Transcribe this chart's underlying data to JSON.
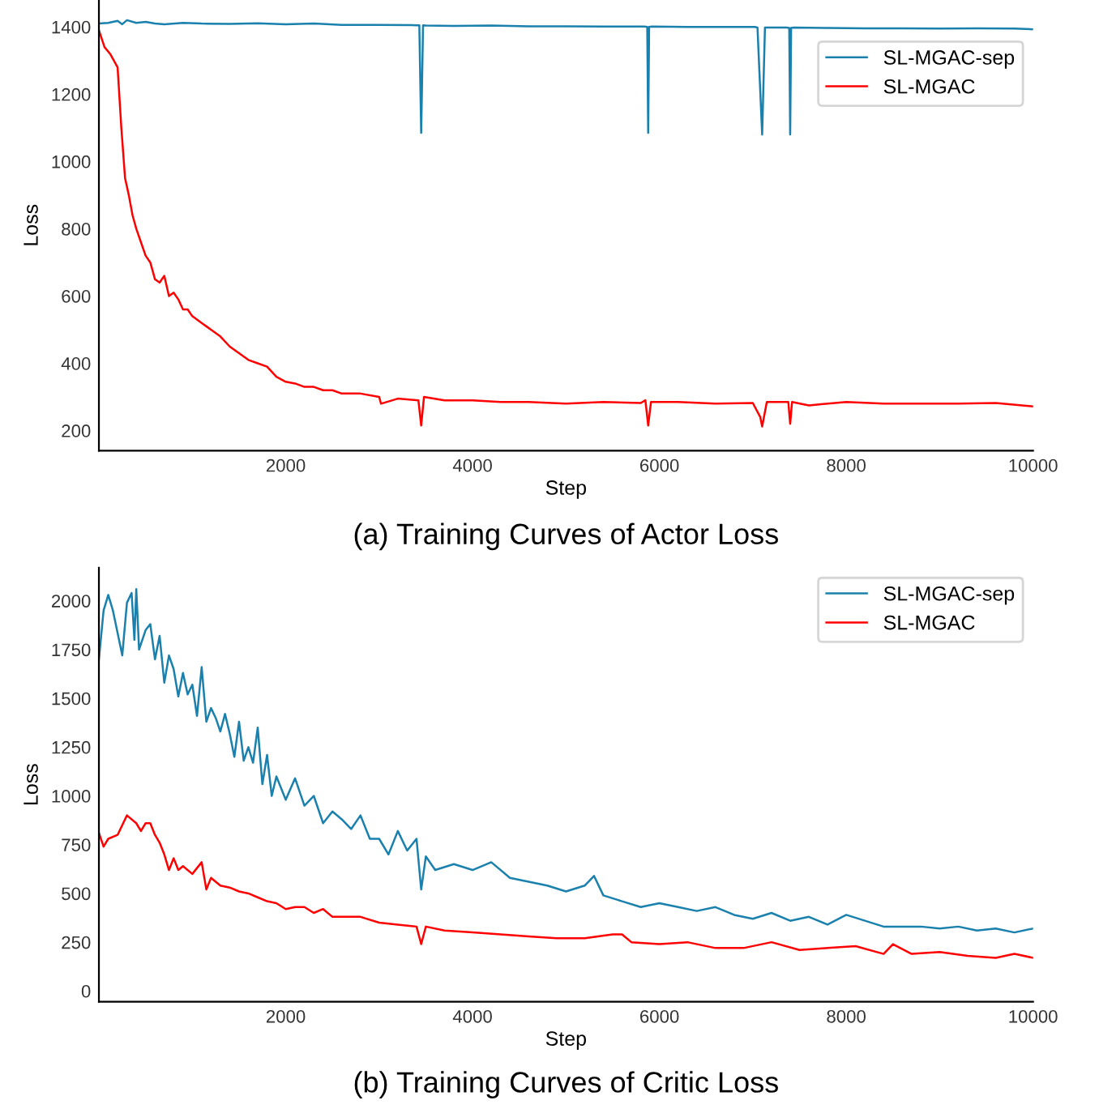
{
  "chart_data": [
    {
      "type": "line",
      "title": "(a) Training Curves of Actor Loss",
      "xlabel": "Step",
      "ylabel": "Loss",
      "xlim": [
        0,
        10000
      ],
      "ylim": [
        140,
        1480
      ],
      "xticks": [
        2000,
        4000,
        6000,
        8000,
        10000
      ],
      "yticks": [
        200,
        400,
        600,
        800,
        1000,
        1200,
        1400
      ],
      "grid": false,
      "legend": "top right",
      "series": [
        {
          "name": "SL-MGAC-sep",
          "color": "#1a80ad",
          "x": [
            0,
            100,
            200,
            250,
            300,
            400,
            500,
            600,
            700,
            900,
            1100,
            1400,
            1700,
            2000,
            2300,
            2600,
            3000,
            3400,
            3430,
            3450,
            3470,
            3500,
            3800,
            4200,
            4600,
            5000,
            5400,
            5840,
            5870,
            5880,
            5890,
            5920,
            6300,
            6700,
            7020,
            7050,
            7100,
            7130,
            7160,
            7360,
            7390,
            7400,
            7410,
            7440,
            7800,
            8200,
            8600,
            9000,
            9400,
            9800,
            10000
          ],
          "values": [
            1410,
            1412,
            1418,
            1408,
            1420,
            1412,
            1415,
            1410,
            1408,
            1412,
            1410,
            1409,
            1411,
            1408,
            1410,
            1406,
            1406,
            1405,
            1405,
            1085,
            1405,
            1404,
            1403,
            1404,
            1402,
            1402,
            1401,
            1401,
            1400,
            1085,
            1400,
            1401,
            1400,
            1400,
            1400,
            1398,
            1080,
            1398,
            1398,
            1398,
            1397,
            1080,
            1397,
            1398,
            1397,
            1396,
            1396,
            1395,
            1396,
            1395,
            1393
          ]
        },
        {
          "name": "SL-MGAC",
          "color": "#ff0000",
          "x": [
            0,
            60,
            120,
            200,
            240,
            280,
            320,
            360,
            400,
            450,
            500,
            550,
            600,
            650,
            700,
            750,
            800,
            850,
            900,
            950,
            1000,
            1100,
            1200,
            1300,
            1400,
            1500,
            1600,
            1700,
            1800,
            1900,
            2000,
            2100,
            2200,
            2300,
            2400,
            2500,
            2600,
            2800,
            3000,
            3020,
            3200,
            3420,
            3450,
            3480,
            3700,
            4000,
            4300,
            4600,
            5000,
            5400,
            5800,
            5850,
            5880,
            5910,
            6200,
            6600,
            7000,
            7080,
            7100,
            7150,
            7380,
            7400,
            7420,
            7600,
            8000,
            8400,
            8800,
            9200,
            9600,
            10000
          ],
          "values": [
            1390,
            1340,
            1320,
            1280,
            1100,
            950,
            900,
            840,
            800,
            760,
            720,
            700,
            650,
            640,
            660,
            600,
            610,
            590,
            560,
            560,
            540,
            520,
            500,
            480,
            450,
            430,
            410,
            400,
            390,
            360,
            345,
            340,
            330,
            330,
            320,
            320,
            310,
            310,
            300,
            280,
            295,
            290,
            215,
            300,
            290,
            290,
            285,
            285,
            280,
            285,
            282,
            290,
            215,
            285,
            285,
            280,
            282,
            240,
            212,
            285,
            285,
            220,
            285,
            275,
            285,
            280,
            280,
            280,
            282,
            272
          ]
        }
      ]
    },
    {
      "type": "line",
      "title": "(b) Training Curves of Critic Loss",
      "xlabel": "Step",
      "ylabel": "Loss",
      "xlim": [
        0,
        10000
      ],
      "ylim": [
        -55,
        2170
      ],
      "xticks": [
        2000,
        4000,
        6000,
        8000,
        10000
      ],
      "yticks": [
        0,
        250,
        500,
        750,
        1000,
        1250,
        1500,
        1750,
        2000
      ],
      "grid": false,
      "legend": "top right",
      "series": [
        {
          "name": "SL-MGAC-sep",
          "color": "#1a80ad",
          "x": [
            0,
            50,
            100,
            150,
            250,
            300,
            350,
            380,
            400,
            430,
            500,
            550,
            600,
            650,
            700,
            750,
            800,
            850,
            900,
            950,
            1000,
            1050,
            1100,
            1150,
            1200,
            1250,
            1300,
            1350,
            1400,
            1450,
            1500,
            1550,
            1600,
            1650,
            1700,
            1750,
            1800,
            1850,
            1900,
            2000,
            2100,
            2200,
            2300,
            2400,
            2500,
            2600,
            2700,
            2800,
            2900,
            3000,
            3100,
            3200,
            3300,
            3400,
            3450,
            3500,
            3600,
            3800,
            4000,
            4200,
            4400,
            4600,
            4800,
            5000,
            5200,
            5300,
            5400,
            5600,
            5800,
            6000,
            6200,
            6400,
            6600,
            6800,
            7000,
            7200,
            7400,
            7600,
            7800,
            8000,
            8200,
            8400,
            8600,
            8800,
            9000,
            9200,
            9400,
            9600,
            9800,
            10000
          ],
          "values": [
            1700,
            1950,
            2030,
            1950,
            1720,
            1990,
            2040,
            1800,
            2060,
            1750,
            1850,
            1880,
            1700,
            1820,
            1580,
            1720,
            1650,
            1510,
            1630,
            1520,
            1570,
            1410,
            1660,
            1380,
            1450,
            1400,
            1330,
            1420,
            1320,
            1200,
            1380,
            1180,
            1250,
            1170,
            1350,
            1060,
            1210,
            1000,
            1100,
            980,
            1090,
            950,
            1000,
            860,
            920,
            880,
            830,
            900,
            780,
            780,
            700,
            820,
            720,
            780,
            520,
            690,
            620,
            650,
            620,
            660,
            580,
            560,
            540,
            510,
            540,
            590,
            490,
            460,
            430,
            450,
            430,
            410,
            430,
            390,
            370,
            400,
            360,
            380,
            340,
            390,
            360,
            330,
            330,
            330,
            320,
            330,
            310,
            320,
            300,
            320
          ]
        },
        {
          "name": "SL-MGAC",
          "color": "#ff0000",
          "x": [
            0,
            50,
            100,
            200,
            300,
            400,
            450,
            500,
            550,
            600,
            650,
            700,
            750,
            800,
            850,
            900,
            1000,
            1100,
            1150,
            1200,
            1300,
            1400,
            1500,
            1600,
            1700,
            1800,
            1900,
            2000,
            2100,
            2200,
            2300,
            2400,
            2500,
            2600,
            2800,
            3000,
            3200,
            3400,
            3450,
            3500,
            3700,
            4000,
            4300,
            4600,
            4900,
            5200,
            5500,
            5600,
            5700,
            6000,
            6300,
            6600,
            6900,
            7200,
            7500,
            7800,
            8100,
            8400,
            8500,
            8700,
            9000,
            9300,
            9600,
            9800,
            10000
          ],
          "values": [
            810,
            740,
            780,
            800,
            900,
            860,
            820,
            860,
            860,
            800,
            760,
            700,
            620,
            680,
            620,
            640,
            600,
            660,
            520,
            580,
            540,
            530,
            510,
            500,
            480,
            460,
            450,
            420,
            430,
            430,
            400,
            420,
            380,
            380,
            380,
            350,
            340,
            330,
            240,
            330,
            310,
            300,
            290,
            280,
            270,
            270,
            290,
            290,
            250,
            240,
            250,
            220,
            220,
            250,
            210,
            220,
            230,
            190,
            240,
            190,
            200,
            180,
            170,
            190,
            170
          ]
        }
      ]
    }
  ]
}
